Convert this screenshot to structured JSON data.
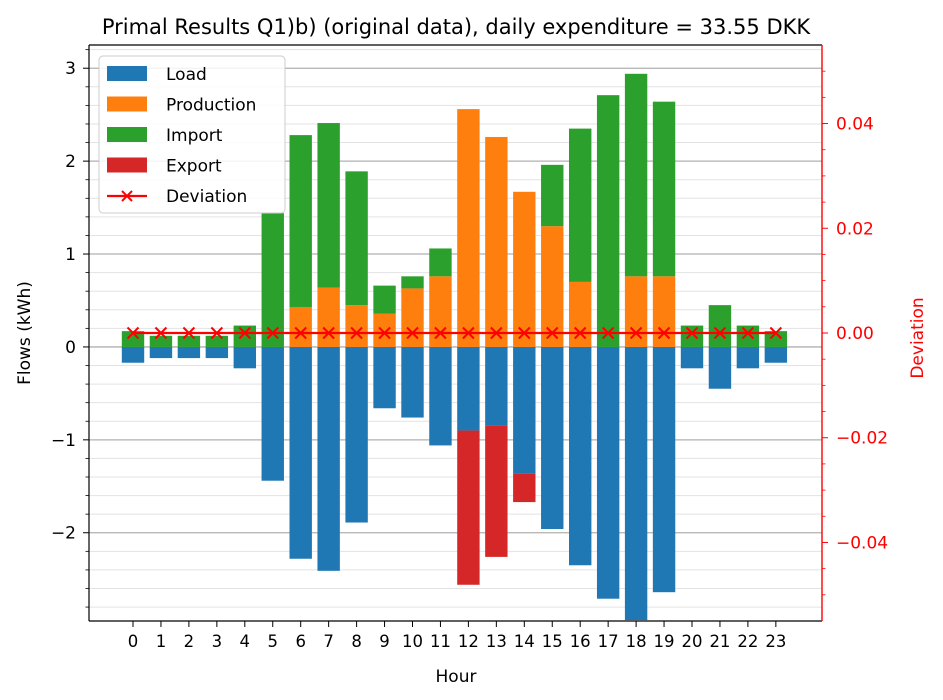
{
  "chart_data": {
    "type": "bar",
    "title": "Primal Results Q1)b) (original data), daily expenditure = 33.55 DKK",
    "xlabel": "Hour",
    "ylabel": "Flows (kWh)",
    "y2label": "Deviation",
    "categories": [
      "0",
      "1",
      "2",
      "3",
      "4",
      "5",
      "6",
      "7",
      "8",
      "9",
      "10",
      "11",
      "12",
      "13",
      "14",
      "15",
      "16",
      "17",
      "18",
      "19",
      "20",
      "21",
      "22",
      "23"
    ],
    "ylim": [
      -2.95,
      3.25
    ],
    "y2lim": [
      -0.055,
      0.055
    ],
    "yticks": [
      "3",
      "2",
      "1",
      "0",
      "−1",
      "−2"
    ],
    "yticks_values": [
      3,
      2,
      1,
      0,
      -1,
      -2
    ],
    "y2ticks": [
      "0.04",
      "0.02",
      "0.00",
      "−0.02",
      "−0.04"
    ],
    "y2ticks_values": [
      0.04,
      0.02,
      0.0,
      -0.02,
      -0.04
    ],
    "grid": "on",
    "legend_position": "top-left",
    "colors": {
      "load": "#1f77b4",
      "production": "#ff7f0e",
      "import": "#2ca02c",
      "export": "#d62728",
      "deviation": "#ff0000",
      "secondary_axis": "#ff0000"
    },
    "series": [
      {
        "name": "Load",
        "values": [
          -0.17,
          -0.12,
          -0.12,
          -0.12,
          -0.23,
          -1.44,
          -2.28,
          -2.41,
          -1.89,
          -0.66,
          -0.76,
          -1.06,
          -0.9,
          -0.85,
          -1.36,
          -1.96,
          -2.35,
          -2.71,
          -2.94,
          -2.64,
          -0.23,
          -0.45,
          -0.23,
          -0.17
        ]
      },
      {
        "name": "Production",
        "values": [
          0,
          0,
          0,
          0,
          0,
          0,
          0.43,
          0.64,
          0.45,
          0.36,
          0.63,
          0.76,
          2.56,
          2.26,
          1.67,
          1.3,
          0.7,
          0,
          0.76,
          0.76,
          0,
          0,
          0,
          0
        ]
      },
      {
        "name": "Import",
        "values": [
          0.17,
          0.12,
          0.12,
          0.12,
          0.23,
          1.44,
          1.85,
          1.77,
          1.44,
          0.3,
          0.13,
          0.3,
          0,
          0,
          0,
          0.66,
          1.65,
          2.71,
          2.18,
          1.88,
          0.23,
          0.45,
          0.23,
          0.17
        ]
      },
      {
        "name": "Export",
        "values": [
          0,
          0,
          0,
          0,
          0,
          0,
          0,
          0,
          0,
          0,
          0,
          0,
          -1.66,
          -1.41,
          -0.31,
          0,
          0,
          0,
          0,
          0,
          0,
          0,
          0,
          0
        ]
      },
      {
        "name": "Deviation",
        "values": [
          0,
          0,
          0,
          0,
          0,
          0,
          0,
          0,
          0,
          0,
          0,
          0,
          0,
          0,
          0,
          0,
          0,
          0,
          0,
          0,
          0,
          0,
          0,
          0
        ]
      }
    ]
  }
}
